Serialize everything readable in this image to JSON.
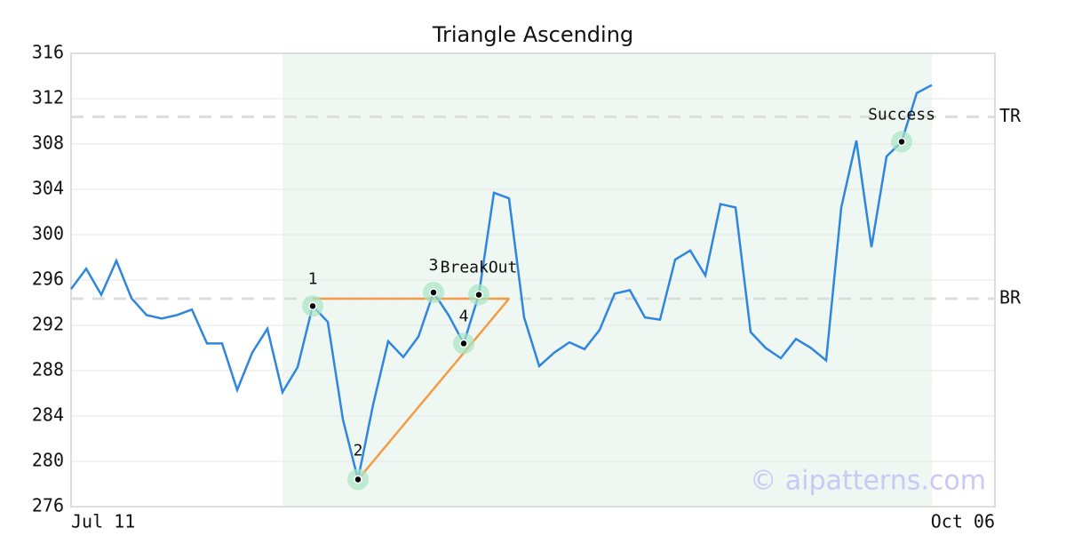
{
  "chart_data": {
    "type": "line",
    "title": "Triangle Ascending",
    "categories": [
      "Jul 11",
      null,
      null,
      null,
      null,
      null,
      null,
      null,
      null,
      null,
      null,
      null,
      null,
      null,
      null,
      null,
      null,
      null,
      null,
      null,
      null,
      null,
      null,
      null,
      null,
      null,
      null,
      null,
      null,
      null,
      null,
      null,
      null,
      null,
      null,
      null,
      null,
      null,
      null,
      null,
      null,
      null,
      null,
      null,
      null,
      null,
      null,
      null,
      null,
      null,
      null,
      null,
      null,
      null,
      null,
      null,
      null,
      "Oct 06"
    ],
    "series": [
      {
        "color": "#2e86de",
        "values": [
          295.2,
          297.0,
          294.7,
          297.7,
          294.4,
          292.9,
          292.6,
          292.9,
          293.4,
          290.4,
          290.4,
          286.3,
          289.6,
          291.7,
          286.1,
          288.3,
          293.7,
          292.3,
          283.7,
          278.4,
          285.0,
          290.6,
          289.2,
          291.0,
          294.9,
          292.9,
          290.4,
          294.7,
          303.7,
          303.2,
          292.7,
          288.4,
          289.6,
          290.5,
          289.9,
          291.6,
          294.8,
          295.1,
          292.7,
          292.5,
          297.8,
          298.6,
          296.4,
          302.7,
          302.4,
          291.4,
          290.0,
          289.1,
          290.8,
          290.0,
          288.9,
          302.4,
          308.3,
          298.9,
          306.9,
          308.2,
          312.5,
          313.2
        ]
      }
    ],
    "ylim": [
      276,
      316
    ],
    "yticks": [
      276,
      280,
      284,
      288,
      292,
      296,
      300,
      304,
      308,
      312,
      316
    ],
    "grid": true,
    "highlight_range": [
      14,
      57
    ],
    "levels": [
      {
        "label": "TR",
        "value": 310.4
      },
      {
        "label": "BR",
        "value": 294.35
      }
    ],
    "pattern_lines": [
      {
        "from": [
          16,
          294.35
        ],
        "to": [
          29,
          294.35
        ]
      },
      {
        "from": [
          19,
          278.4
        ],
        "to": [
          29,
          294.35
        ]
      }
    ],
    "pattern_color": "#f39c44",
    "pattern_points": [
      {
        "label": "1",
        "index": 16
      },
      {
        "label": "2",
        "index": 19
      },
      {
        "label": "3",
        "index": 24
      },
      {
        "label": "4",
        "index": 26
      },
      {
        "label": "BreakOut",
        "index": 27
      },
      {
        "label": "Success",
        "index": 55
      }
    ],
    "watermark": "© aipatterns.com"
  }
}
